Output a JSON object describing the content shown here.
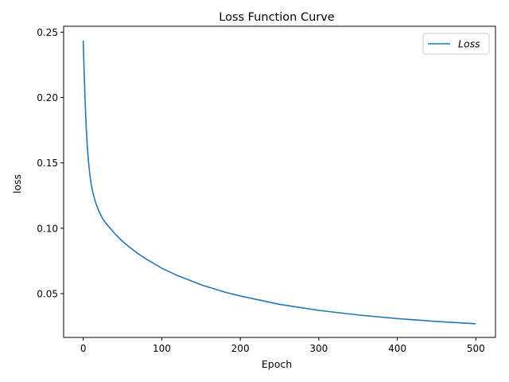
{
  "colors": {
    "series": "#1f77b4",
    "axis": "#000000",
    "legend_border": "#cccccc",
    "background": "#ffffff"
  },
  "chart_data": {
    "type": "line",
    "title": "Loss Function Curve",
    "xlabel": "Epoch",
    "ylabel": "loss",
    "xlim": [
      -25,
      525
    ],
    "ylim": [
      0.0165,
      0.2545
    ],
    "xticks": [
      0,
      100,
      200,
      300,
      400,
      500
    ],
    "xtick_labels": [
      "0",
      "100",
      "200",
      "300",
      "400",
      "500"
    ],
    "yticks": [
      0.05,
      0.1,
      0.15,
      0.2,
      0.25
    ],
    "ytick_labels": [
      "0.05",
      "0.10",
      "0.15",
      "0.20",
      "0.25"
    ],
    "grid": false,
    "legend_position": "top-right",
    "series": [
      {
        "name": "Loss",
        "color": "#1f77b4",
        "x": [
          0,
          1,
          2,
          3,
          4,
          5,
          6,
          7,
          8,
          10,
          12,
          15,
          18,
          20,
          25,
          30,
          40,
          50,
          60,
          70,
          80,
          100,
          120,
          150,
          180,
          200,
          250,
          300,
          350,
          400,
          450,
          499
        ],
        "y": [
          0.243,
          0.222,
          0.204,
          0.188,
          0.175,
          0.164,
          0.156,
          0.149,
          0.143,
          0.134,
          0.128,
          0.121,
          0.116,
          0.113,
          0.107,
          0.103,
          0.096,
          0.09,
          0.085,
          0.0805,
          0.0765,
          0.0695,
          0.0638,
          0.0568,
          0.0512,
          0.0482,
          0.0418,
          0.0372,
          0.0337,
          0.0309,
          0.0287,
          0.027
        ]
      }
    ]
  }
}
